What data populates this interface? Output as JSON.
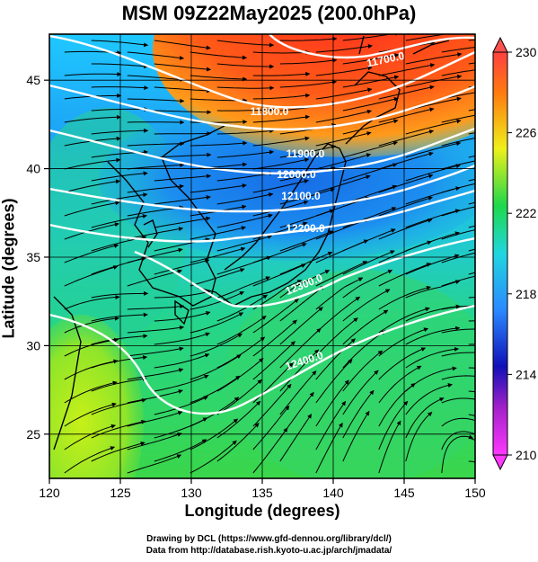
{
  "title": "MSM 09Z22May2025 (200.0hPa)",
  "xlabel": "Longitude (degrees)",
  "ylabel": "Latitude  (degrees)",
  "credits": {
    "line1": "Drawing by DCL (https://www.gfd-dennou.org/library/dcl/)",
    "line2": "Data from http://database.rish.kyoto-u.ac.jp/arch/jmadata/"
  },
  "map": {
    "lon_range": [
      120,
      150
    ],
    "lat_range": [
      22.5,
      47.6
    ],
    "x_ticks": [
      "120",
      "125",
      "130",
      "135",
      "140",
      "145",
      "150"
    ],
    "y_ticks": [
      "25",
      "30",
      "35",
      "40",
      "45"
    ],
    "grid": true,
    "contour_labels": [
      "11700.0",
      "11800.0",
      "11900.0",
      "12000.0",
      "12100.0",
      "12200.0",
      "12300.0",
      "12400.0"
    ],
    "colors": {
      "warm": "#ff3b21",
      "cold": "#1b67e8",
      "mid": "#22c55e",
      "streamline": "#000000",
      "contour": "#ffffff"
    }
  },
  "colorbar": {
    "tick_labels": [
      "230",
      "226",
      "222",
      "218",
      "214",
      "210"
    ],
    "min": 210,
    "max": 230,
    "colors": [
      "#ff39ff",
      "#1010b8",
      "#2a89ff",
      "#20d6e0",
      "#1fd84b",
      "#eef01a",
      "#ff7a10",
      "#ff4040"
    ]
  }
}
